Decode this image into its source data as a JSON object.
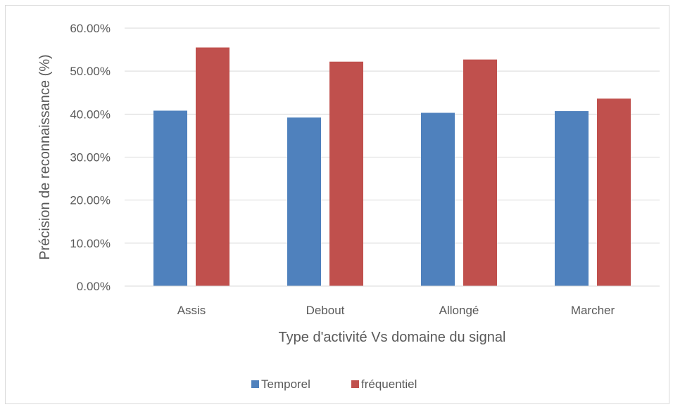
{
  "chart_data": {
    "type": "bar",
    "title": "",
    "xlabel": "Type d'activité Vs domaine du signal",
    "ylabel": "Précision de reconnaissance (%)",
    "categories": [
      "Assis",
      "Debout",
      "Allongé",
      "Marcher"
    ],
    "series": [
      {
        "name": "Temporel",
        "color": "#4f81bd",
        "values": [
          40.8,
          39.2,
          40.3,
          40.7
        ]
      },
      {
        "name": "fréquentiel",
        "color": "#c0504d",
        "values": [
          55.5,
          52.2,
          52.7,
          43.6
        ]
      }
    ],
    "yticks": [
      "0.00%",
      "10.00%",
      "20.00%",
      "30.00%",
      "40.00%",
      "50.00%",
      "60.00%"
    ],
    "ylim": [
      0,
      60
    ],
    "grid": true,
    "legend_position": "bottom"
  }
}
